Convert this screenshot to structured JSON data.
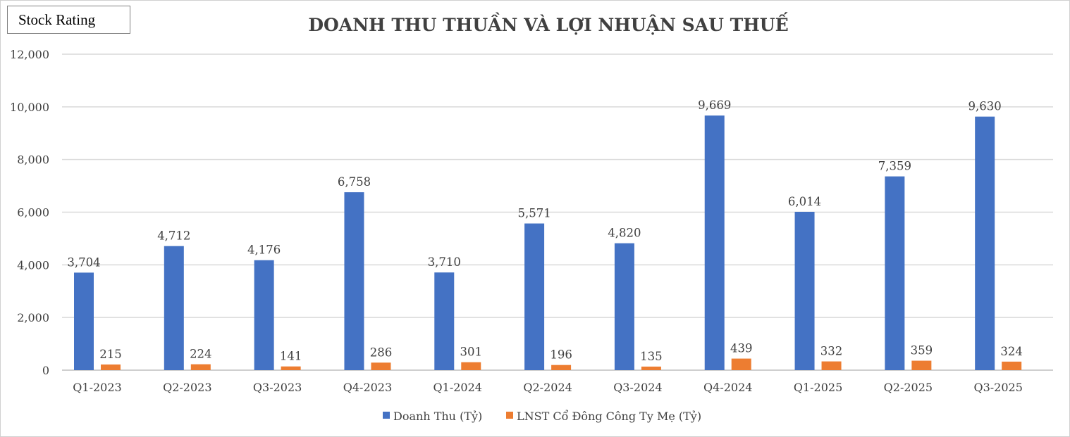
{
  "badge": {
    "label": "Stock Rating"
  },
  "chart_data": {
    "type": "bar",
    "title": "DOANH THU THUẦN VÀ LỢI NHUẬN SAU THUẾ",
    "categories": [
      "Q1-2023",
      "Q2-2023",
      "Q3-2023",
      "Q4-2023",
      "Q1-2024",
      "Q2-2024",
      "Q3-2024",
      "Q4-2024",
      "Q1-2025",
      "Q2-2025",
      "Q3-2025"
    ],
    "series": [
      {
        "name": "Doanh Thu (Tỷ)",
        "color": "#4472C4",
        "values": [
          3704,
          4712,
          4176,
          6758,
          3710,
          5571,
          4820,
          9669,
          6014,
          7359,
          9630
        ],
        "labels": [
          "3,704",
          "4,712",
          "4,176",
          "6,758",
          "3,710",
          "5,571",
          "4,820",
          "9,669",
          "6,014",
          "7,359",
          "9,630"
        ]
      },
      {
        "name": "LNST Cổ Đông Công Ty Mẹ (Tỷ)",
        "color": "#ED7D31",
        "values": [
          215,
          224,
          141,
          286,
          301,
          196,
          135,
          439,
          332,
          359,
          324
        ],
        "labels": [
          "215",
          "224",
          "141",
          "286",
          "301",
          "196",
          "135",
          "439",
          "332",
          "359",
          "324"
        ]
      }
    ],
    "ylim": [
      0,
      12000
    ],
    "yticks": [
      0,
      2000,
      4000,
      6000,
      8000,
      10000,
      12000
    ],
    "ytick_labels": [
      "0",
      "2,000",
      "4,000",
      "6,000",
      "8,000",
      "10,000",
      "12,000"
    ],
    "xlabel": "",
    "ylabel": "",
    "grid": true,
    "legend_position": "bottom-center"
  }
}
